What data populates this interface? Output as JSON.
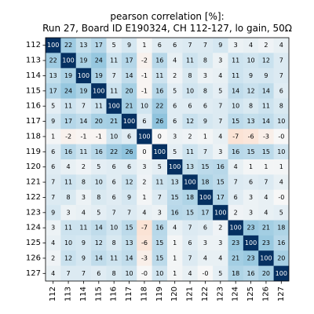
{
  "chart_data": {
    "type": "heatmap",
    "title": "pearson correlation [%]:",
    "subtitle": "Run 27, Board ID E190324, CH 112-127, lo gain, 50Ω",
    "x_categories": [
      "112",
      "113",
      "114",
      "115",
      "116",
      "117",
      "118",
      "119",
      "120",
      "121",
      "122",
      "123",
      "124",
      "125",
      "126",
      "127"
    ],
    "y_categories": [
      "112",
      "113",
      "114",
      "115",
      "116",
      "117",
      "118",
      "119",
      "120",
      "121",
      "122",
      "123",
      "124",
      "125",
      "126",
      "127"
    ],
    "value_range": [
      -100,
      100
    ],
    "colormap": "RdBu_r-like (blue = positive, red = negative)",
    "grid": false,
    "legend": "none",
    "labels": [
      [
        "100",
        "22",
        "13",
        "17",
        "5",
        "9",
        "1",
        "6",
        "6",
        "7",
        "7",
        "9",
        "3",
        "4",
        "2",
        "4"
      ],
      [
        "22",
        "100",
        "19",
        "24",
        "11",
        "17",
        "-2",
        "16",
        "4",
        "11",
        "8",
        "3",
        "11",
        "10",
        "12",
        "7"
      ],
      [
        "13",
        "19",
        "100",
        "19",
        "7",
        "14",
        "-1",
        "11",
        "2",
        "8",
        "3",
        "4",
        "11",
        "9",
        "9",
        "7"
      ],
      [
        "17",
        "24",
        "19",
        "100",
        "11",
        "20",
        "-1",
        "16",
        "5",
        "10",
        "8",
        "5",
        "14",
        "12",
        "14",
        "6"
      ],
      [
        "5",
        "11",
        "7",
        "11",
        "100",
        "21",
        "10",
        "22",
        "6",
        "6",
        "6",
        "7",
        "10",
        "8",
        "11",
        "8"
      ],
      [
        "9",
        "17",
        "14",
        "20",
        "21",
        "100",
        "6",
        "26",
        "6",
        "12",
        "9",
        "7",
        "15",
        "13",
        "14",
        "10"
      ],
      [
        "1",
        "-2",
        "-1",
        "-1",
        "10",
        "6",
        "100",
        "0",
        "3",
        "2",
        "1",
        "4",
        "-7",
        "-6",
        "-3",
        "-0"
      ],
      [
        "6",
        "16",
        "11",
        "16",
        "22",
        "26",
        "0",
        "100",
        "5",
        "11",
        "7",
        "3",
        "16",
        "15",
        "15",
        "10"
      ],
      [
        "6",
        "4",
        "2",
        "5",
        "6",
        "6",
        "3",
        "5",
        "100",
        "13",
        "15",
        "16",
        "4",
        "1",
        "1",
        "1"
      ],
      [
        "7",
        "11",
        "8",
        "10",
        "6",
        "12",
        "2",
        "11",
        "13",
        "100",
        "18",
        "15",
        "7",
        "6",
        "7",
        "4"
      ],
      [
        "7",
        "8",
        "3",
        "8",
        "6",
        "9",
        "1",
        "7",
        "15",
        "18",
        "100",
        "17",
        "6",
        "3",
        "4",
        "-0"
      ],
      [
        "9",
        "3",
        "4",
        "5",
        "7",
        "7",
        "4",
        "3",
        "16",
        "15",
        "17",
        "100",
        "2",
        "3",
        "4",
        "5"
      ],
      [
        "3",
        "11",
        "11",
        "14",
        "10",
        "15",
        "-7",
        "16",
        "4",
        "7",
        "6",
        "2",
        "100",
        "23",
        "21",
        "18"
      ],
      [
        "4",
        "10",
        "9",
        "12",
        "8",
        "13",
        "-6",
        "15",
        "1",
        "6",
        "3",
        "3",
        "23",
        "100",
        "23",
        "16"
      ],
      [
        "2",
        "12",
        "9",
        "14",
        "11",
        "14",
        "-3",
        "15",
        "1",
        "7",
        "4",
        "4",
        "21",
        "23",
        "100",
        "20"
      ],
      [
        "4",
        "7",
        "7",
        "6",
        "8",
        "10",
        "-0",
        "10",
        "1",
        "4",
        "-0",
        "5",
        "18",
        "16",
        "20",
        "100"
      ]
    ]
  }
}
